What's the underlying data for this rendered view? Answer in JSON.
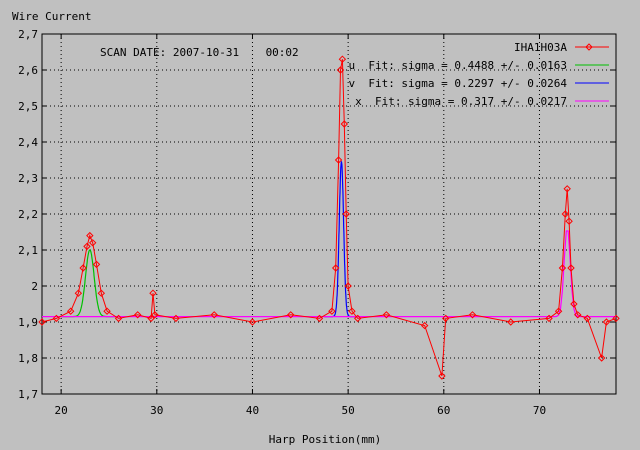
{
  "chart_data": {
    "type": "line",
    "title": "",
    "ylabel": "Wire Current",
    "xlabel": "Harp Position(mm)",
    "annotation": "SCAN DATE: 2007-10-31    00:02",
    "xlim": [
      18,
      78
    ],
    "ylim": [
      1.7,
      2.7
    ],
    "xticks": [
      20,
      30,
      40,
      50,
      60,
      70
    ],
    "yticks": [
      1.7,
      1.8,
      1.9,
      2.0,
      2.1,
      2.2,
      2.3,
      2.4,
      2.5,
      2.6,
      2.7
    ],
    "ytick_labels": [
      "1,7",
      "1,8",
      "1,9",
      "2",
      "2,1",
      "2,2",
      "2,3",
      "2,4",
      "2,5",
      "2,6",
      "2,7"
    ],
    "grid": true,
    "legend_position": "top-right",
    "baseline": 1.915,
    "series": [
      {
        "name": "IHA1H03A",
        "color": "#ff0000",
        "style": "line+points",
        "x": [
          18.0,
          19.5,
          21.0,
          21.8,
          22.3,
          22.7,
          23.0,
          23.3,
          23.7,
          24.2,
          24.8,
          26.0,
          28.0,
          29.4,
          29.6,
          29.8,
          32.0,
          36.0,
          40.0,
          44.0,
          47.0,
          48.3,
          48.7,
          49.0,
          49.2,
          49.4,
          49.6,
          49.8,
          50.0,
          50.4,
          51.0,
          54.0,
          58.0,
          59.8,
          60.2,
          63.0,
          67.0,
          71.0,
          72.0,
          72.4,
          72.7,
          72.9,
          73.1,
          73.3,
          73.6,
          74.0,
          75.0,
          76.5,
          77.0,
          78.0
        ],
        "y": [
          1.9,
          1.91,
          1.93,
          1.98,
          2.05,
          2.11,
          2.14,
          2.12,
          2.06,
          1.98,
          1.93,
          1.91,
          1.92,
          1.91,
          1.98,
          1.92,
          1.91,
          1.92,
          1.9,
          1.92,
          1.91,
          1.93,
          2.05,
          2.35,
          2.6,
          2.63,
          2.45,
          2.2,
          2.0,
          1.93,
          1.91,
          1.92,
          1.89,
          1.75,
          1.91,
          1.92,
          1.9,
          1.91,
          1.93,
          2.05,
          2.2,
          2.27,
          2.18,
          2.05,
          1.95,
          1.92,
          1.91,
          1.8,
          1.9,
          1.91
        ]
      },
      {
        "name": "u  Fit: sigma = 0.4488 +/- 0.0163",
        "color": "#00c000",
        "style": "gaussian",
        "center": 23.0,
        "sigma": 0.4488,
        "amplitude": 0.185,
        "range": [
          20.0,
          26.0
        ]
      },
      {
        "name": "v  Fit: sigma = 0.2297 +/- 0.0264",
        "color": "#0000ff",
        "style": "gaussian",
        "center": 49.3,
        "sigma": 0.2297,
        "amplitude": 0.43,
        "range": [
          47.5,
          51.0
        ]
      },
      {
        "name": "x  Fit: sigma = 0.317 +/- 0.0217",
        "color": "#ff00ff",
        "style": "gaussian",
        "center": 72.9,
        "sigma": 0.317,
        "amplitude": 0.25,
        "range": [
          18.0,
          78.0
        ]
      }
    ]
  }
}
